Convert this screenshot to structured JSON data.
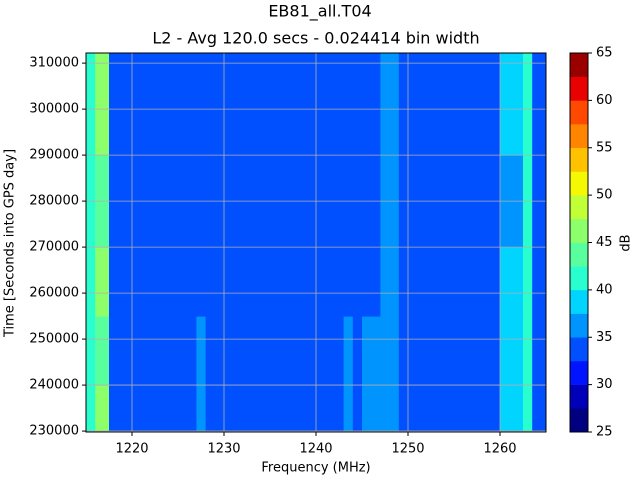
{
  "chart_data": {
    "type": "heatmap",
    "title": "EB81_all.T04",
    "subtitle": "L2 - Avg 120.0 secs - 0.024414 bin width",
    "x_label": "Frequency (MHz)",
    "y_label": "Time [Seconds into GPS day]",
    "colorbar_label": "dB",
    "x_edges": [
      1215,
      1216,
      1217.5,
      1227,
      1228,
      1243,
      1244,
      1245,
      1247,
      1249,
      1260,
      1262.5,
      1263.5,
      1265
    ],
    "y_edges": [
      229800,
      240000,
      255000,
      270000,
      290000,
      312200
    ],
    "z": [
      [
        40,
        45,
        33,
        36,
        33,
        36,
        34,
        37,
        37,
        33,
        38,
        41,
        33
      ],
      [
        40,
        44,
        33,
        35,
        33,
        36,
        33,
        36,
        37,
        33,
        38,
        41,
        33
      ],
      [
        40,
        45,
        33,
        34,
        33,
        33,
        33,
        34,
        36,
        33,
        38,
        41,
        33
      ],
      [
        40,
        44,
        33,
        34,
        33,
        33,
        33,
        34,
        36,
        33,
        37,
        41,
        33
      ],
      [
        40,
        45,
        33,
        34,
        33,
        33,
        33,
        34,
        36,
        33,
        38,
        41,
        33
      ]
    ],
    "levels": [
      25,
      27.5,
      30,
      32.5,
      35,
      37.5,
      40,
      42.5,
      45,
      47.5,
      50,
      52.5,
      55,
      57.5,
      60,
      62.5,
      65
    ],
    "colors": [
      "#000080",
      "#0000b8",
      "#0014ff",
      "#0050ff",
      "#0094ff",
      "#00d4ff",
      "#29ffce",
      "#5aff9d",
      "#8cff6a",
      "#c1ff36",
      "#f4f802",
      "#ffc200",
      "#ff8500",
      "#ff4800",
      "#e90000",
      "#9b0000"
    ],
    "xlim": [
      1215,
      1265
    ],
    "xticks": [
      1220,
      1230,
      1240,
      1250,
      1260
    ],
    "ylim": [
      229800,
      312200
    ],
    "yticks": [
      230000,
      240000,
      250000,
      260000,
      270000,
      280000,
      290000,
      300000,
      310000
    ],
    "clim": [
      25,
      65
    ],
    "cticks": [
      25,
      30,
      35,
      40,
      45,
      50,
      55,
      60,
      65
    ],
    "grid": true
  }
}
